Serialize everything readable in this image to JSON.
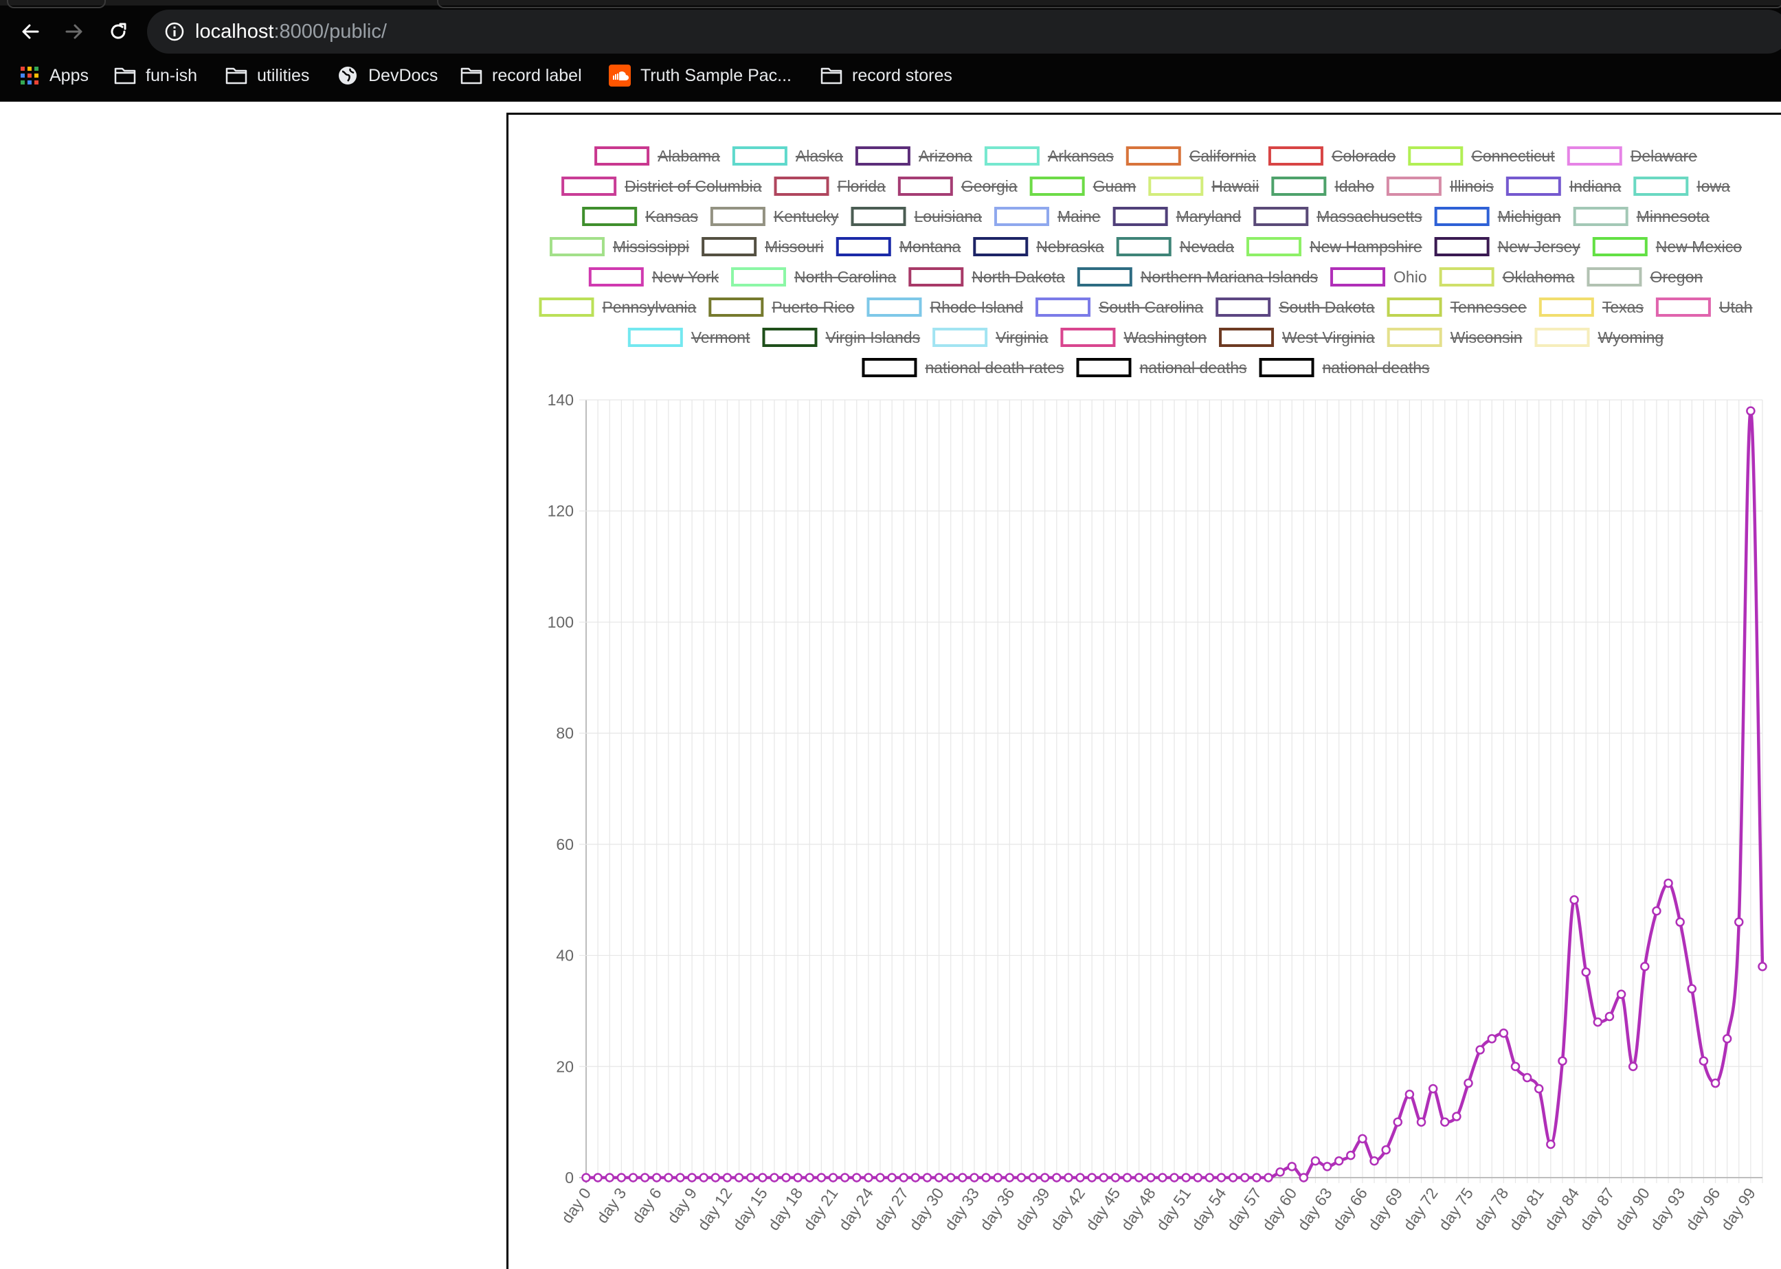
{
  "browser": {
    "url_host": "localhost",
    "url_rest": ":8000/public/",
    "bookmarks": [
      {
        "label": "Apps",
        "icon": "apps-grid-icon"
      },
      {
        "label": "fun-ish",
        "icon": "folder-icon"
      },
      {
        "label": "utilities",
        "icon": "folder-icon"
      },
      {
        "label": "DevDocs",
        "icon": "globe-icon"
      },
      {
        "label": "record label",
        "icon": "folder-icon"
      },
      {
        "label": "Truth Sample Pac...",
        "icon": "soundcloud-icon"
      },
      {
        "label": "record stores",
        "icon": "folder-icon"
      }
    ]
  },
  "chart_data": {
    "type": "line",
    "xlabel": "",
    "ylabel": "",
    "ylim": [
      0,
      140
    ],
    "y_ticks": [
      0,
      20,
      40,
      60,
      80,
      100,
      120,
      140
    ],
    "grid": true,
    "legend_position": "top",
    "x_tick_labels": [
      "day 0",
      "day 3",
      "day 6",
      "day 9",
      "day 12",
      "day 15",
      "day 18",
      "day 21",
      "day 24",
      "day 27",
      "day 30",
      "day 33",
      "day 36",
      "day 39",
      "day 42",
      "day 45",
      "day 48",
      "day 51",
      "day 54",
      "day 57",
      "day 60",
      "day 63",
      "day 66",
      "day 69",
      "day 72",
      "day 75",
      "day 78",
      "day 81",
      "day 84",
      "day 87",
      "day 90",
      "day 93",
      "day 96",
      "day 99"
    ],
    "x": [
      "day 0",
      "day 1",
      "day 2",
      "day 3",
      "day 4",
      "day 5",
      "day 6",
      "day 7",
      "day 8",
      "day 9",
      "day 10",
      "day 11",
      "day 12",
      "day 13",
      "day 14",
      "day 15",
      "day 16",
      "day 17",
      "day 18",
      "day 19",
      "day 20",
      "day 21",
      "day 22",
      "day 23",
      "day 24",
      "day 25",
      "day 26",
      "day 27",
      "day 28",
      "day 29",
      "day 30",
      "day 31",
      "day 32",
      "day 33",
      "day 34",
      "day 35",
      "day 36",
      "day 37",
      "day 38",
      "day 39",
      "day 40",
      "day 41",
      "day 42",
      "day 43",
      "day 44",
      "day 45",
      "day 46",
      "day 47",
      "day 48",
      "day 49",
      "day 50",
      "day 51",
      "day 52",
      "day 53",
      "day 54",
      "day 55",
      "day 56",
      "day 57",
      "day 58",
      "day 59",
      "day 60",
      "day 61",
      "day 62",
      "day 63",
      "day 64",
      "day 65",
      "day 66",
      "day 67",
      "day 68",
      "day 69",
      "day 70",
      "day 71",
      "day 72",
      "day 73",
      "day 74",
      "day 75",
      "day 76",
      "day 77",
      "day 78",
      "day 79",
      "day 80",
      "day 81",
      "day 82",
      "day 83",
      "day 84",
      "day 85",
      "day 86",
      "day 87",
      "day 88",
      "day 89",
      "day 90",
      "day 91",
      "day 92",
      "day 93",
      "day 94",
      "day 95",
      "day 96",
      "day 97",
      "day 98",
      "day 99",
      "day 100"
    ],
    "series": [
      {
        "name": "Ohio",
        "color": "#b02fb8",
        "values": [
          0,
          0,
          0,
          0,
          0,
          0,
          0,
          0,
          0,
          0,
          0,
          0,
          0,
          0,
          0,
          0,
          0,
          0,
          0,
          0,
          0,
          0,
          0,
          0,
          0,
          0,
          0,
          0,
          0,
          0,
          0,
          0,
          0,
          0,
          0,
          0,
          0,
          0,
          0,
          0,
          0,
          0,
          0,
          0,
          0,
          0,
          0,
          0,
          0,
          0,
          0,
          0,
          0,
          0,
          0,
          0,
          0,
          0,
          0,
          1,
          2,
          0,
          3,
          2,
          3,
          4,
          7,
          3,
          5,
          10,
          15,
          10,
          16,
          10,
          11,
          17,
          23,
          25,
          26,
          20,
          18,
          16,
          6,
          21,
          50,
          37,
          28,
          29,
          33,
          20,
          38,
          48,
          53,
          46,
          34,
          21,
          17,
          25,
          46,
          138,
          38
        ]
      }
    ],
    "legend": [
      {
        "label": "Alabama",
        "color": "#c9388f",
        "hidden": true
      },
      {
        "label": "Alaska",
        "color": "#5fd9cc",
        "hidden": true
      },
      {
        "label": "Arizona",
        "color": "#5c2e7a",
        "hidden": true
      },
      {
        "label": "Arkansas",
        "color": "#76e8cf",
        "hidden": true
      },
      {
        "label": "California",
        "color": "#d8743b",
        "hidden": true
      },
      {
        "label": "Colorado",
        "color": "#d84545",
        "hidden": true
      },
      {
        "label": "Connecticut",
        "color": "#b2ef55",
        "hidden": true
      },
      {
        "label": "Delaware",
        "color": "#e683e6",
        "hidden": true
      },
      {
        "label": "District of Columbia",
        "color": "#c93d96",
        "hidden": true
      },
      {
        "label": "Florida",
        "color": "#b0465e",
        "hidden": true
      },
      {
        "label": "Georgia",
        "color": "#a53d74",
        "hidden": true
      },
      {
        "label": "Guam",
        "color": "#6ddb47",
        "hidden": true
      },
      {
        "label": "Hawaii",
        "color": "#d3ed7c",
        "hidden": true
      },
      {
        "label": "Idaho",
        "color": "#4ea26b",
        "hidden": true
      },
      {
        "label": "Illinois",
        "color": "#d68ba7",
        "hidden": true
      },
      {
        "label": "Indiana",
        "color": "#7559cf",
        "hidden": true
      },
      {
        "label": "Iowa",
        "color": "#6ad9c2",
        "hidden": true
      },
      {
        "label": "Kansas",
        "color": "#3f8f2d",
        "hidden": true
      },
      {
        "label": "Kentucky",
        "color": "#939282",
        "hidden": true
      },
      {
        "label": "Louisiana",
        "color": "#4b5d53",
        "hidden": true
      },
      {
        "label": "Maine",
        "color": "#8fa8ee",
        "hidden": true
      },
      {
        "label": "Maryland",
        "color": "#50407a",
        "hidden": true
      },
      {
        "label": "Massachusetts",
        "color": "#5a4a78",
        "hidden": true
      },
      {
        "label": "Michigan",
        "color": "#2e61d6",
        "hidden": true
      },
      {
        "label": "Minnesota",
        "color": "#a3c8b6",
        "hidden": true
      },
      {
        "label": "Mississippi",
        "color": "#a3e08a",
        "hidden": true
      },
      {
        "label": "Missouri",
        "color": "#545042",
        "hidden": true
      },
      {
        "label": "Montana",
        "color": "#1b2aa8",
        "hidden": true
      },
      {
        "label": "Nebraska",
        "color": "#1d2466",
        "hidden": true
      },
      {
        "label": "Nevada",
        "color": "#3f8478",
        "hidden": true
      },
      {
        "label": "New Hampshire",
        "color": "#8ef067",
        "hidden": true
      },
      {
        "label": "New Jersey",
        "color": "#3a1a52",
        "hidden": true
      },
      {
        "label": "New Mexico",
        "color": "#63e044",
        "hidden": true
      },
      {
        "label": "New York",
        "color": "#d03ab0",
        "hidden": true
      },
      {
        "label": "North Carolina",
        "color": "#8cf7a6",
        "hidden": true
      },
      {
        "label": "North Dakota",
        "color": "#a83a68",
        "hidden": true
      },
      {
        "label": "Northern Mariana Islands",
        "color": "#2e6c82",
        "hidden": true
      },
      {
        "label": "Ohio",
        "color": "#b02fb8",
        "hidden": false
      },
      {
        "label": "Oklahoma",
        "color": "#cfe06a",
        "hidden": true
      },
      {
        "label": "Oregon",
        "color": "#b2c2b2",
        "hidden": true
      },
      {
        "label": "Pennsylvania",
        "color": "#bbe058",
        "hidden": true
      },
      {
        "label": "Puerto Rico",
        "color": "#767a2e",
        "hidden": true
      },
      {
        "label": "Rhode Island",
        "color": "#7ec8e8",
        "hidden": true
      },
      {
        "label": "South Carolina",
        "color": "#7b7be8",
        "hidden": true
      },
      {
        "label": "South Dakota",
        "color": "#5c4682",
        "hidden": true
      },
      {
        "label": "Tennessee",
        "color": "#bfd451",
        "hidden": true
      },
      {
        "label": "Texas",
        "color": "#f2de6e",
        "hidden": true
      },
      {
        "label": "Utah",
        "color": "#e064ad",
        "hidden": true
      },
      {
        "label": "Vermont",
        "color": "#74e8f0",
        "hidden": true
      },
      {
        "label": "Virgin Islands",
        "color": "#1f4f1b",
        "hidden": true
      },
      {
        "label": "Virginia",
        "color": "#a2e4f2",
        "hidden": true
      },
      {
        "label": "Washington",
        "color": "#d9468f",
        "hidden": true
      },
      {
        "label": "West Virginia",
        "color": "#6d3a22",
        "hidden": true
      },
      {
        "label": "Wisconsin",
        "color": "#e4e08c",
        "hidden": true
      },
      {
        "label": "Wyoming",
        "color": "#f6eebc",
        "hidden": true
      },
      {
        "label": "national death rates",
        "color": "#000000",
        "hidden": true
      },
      {
        "label": "national deaths",
        "color": "#000000",
        "hidden": true
      },
      {
        "label": "national deaths",
        "color": "#000000",
        "hidden": true
      }
    ]
  }
}
